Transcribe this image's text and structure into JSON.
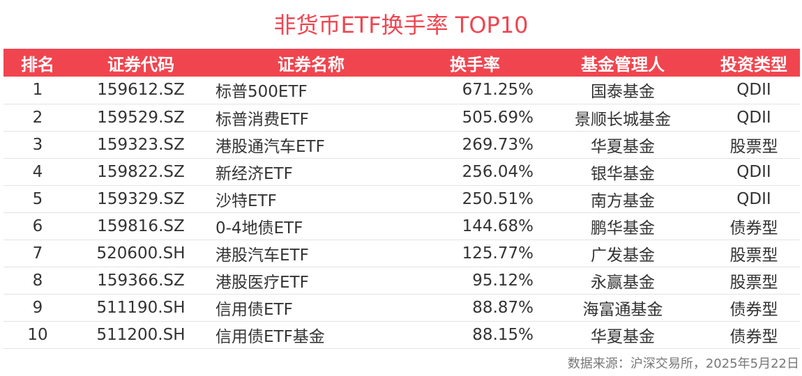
{
  "title": "非货币ETF换手率 TOP10",
  "headers": [
    "排名",
    "证券代码",
    "证券名称",
    "换手率",
    "基金管理人",
    "投资类型"
  ],
  "rows": [
    {
      "rank": "1",
      "code": "159612.SZ",
      "name": "标普500ETF",
      "rate": "671.25%",
      "manager": "国泰基金",
      "type": "QDII"
    },
    {
      "rank": "2",
      "code": "159529.SZ",
      "name": "标普消费ETF",
      "rate": "505.69%",
      "manager": "景顺长城基金",
      "type": "QDII"
    },
    {
      "rank": "3",
      "code": "159323.SZ",
      "name": "港股通汽车ETF",
      "rate": "269.73%",
      "manager": "华夏基金",
      "type": "股票型"
    },
    {
      "rank": "4",
      "code": "159822.SZ",
      "name": "新经济ETF",
      "rate": "256.04%",
      "manager": "银华基金",
      "type": "QDII"
    },
    {
      "rank": "5",
      "code": "159329.SZ",
      "name": "沙特ETF",
      "rate": "250.51%",
      "manager": "南方基金",
      "type": "QDII"
    },
    {
      "rank": "6",
      "code": "159816.SZ",
      "name": "0-4地债ETF",
      "rate": "144.68%",
      "manager": "鹏华基金",
      "type": "债券型"
    },
    {
      "rank": "7",
      "code": "520600.SH",
      "name": "港股汽车ETF",
      "rate": "125.77%",
      "manager": "广发基金",
      "type": "股票型"
    },
    {
      "rank": "8",
      "code": "159366.SZ",
      "name": "港股医疗ETF",
      "rate": "95.12%",
      "manager": "永赢基金",
      "type": "股票型"
    },
    {
      "rank": "9",
      "code": "511190.SH",
      "name": "信用债ETF",
      "rate": "88.87%",
      "manager": "海富通基金",
      "type": "债券型"
    },
    {
      "rank": "10",
      "code": "511200.SH",
      "name": "信用债ETF基金",
      "rate": "88.15%",
      "manager": "华夏基金",
      "type": "债券型"
    }
  ],
  "source": "数据来源：沪深交易所，2025年5月22日",
  "colors": {
    "accent": "#f0454f",
    "title": "#ee4651",
    "text": "#333333"
  }
}
